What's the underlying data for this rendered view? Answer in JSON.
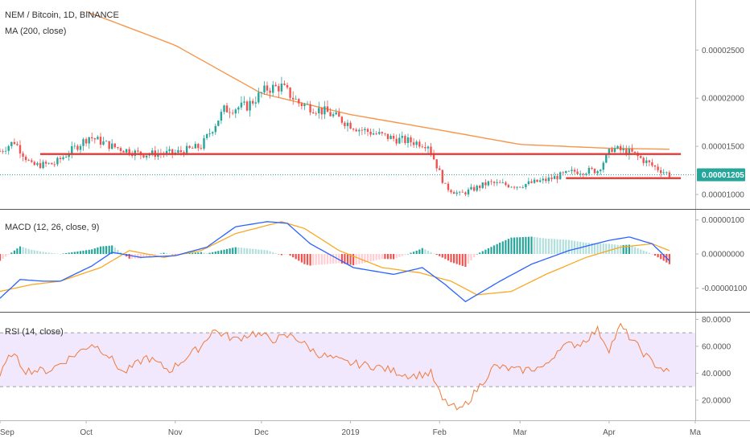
{
  "legend": {
    "symbol": "NEM / Bitcoin, 1D, BINANCE",
    "ma": "MA (200, close)",
    "macd": "MACD (12, 26, close, 9)",
    "rsi": "RSI (14, close)"
  },
  "colors": {
    "up": "#26a69a",
    "down": "#ef5350",
    "ma": "#f7954a",
    "macd": "#2962ff",
    "signal": "#f9a825",
    "hist_up": "#26a69a",
    "hist_up_light": "#b2dfdb",
    "hist_down": "#ef5350",
    "hist_down_light": "#ffcdd2",
    "rsi": "#f07a3a",
    "rsi_band": "#e9d8fd",
    "support": "#e53935",
    "last_price": "#26a69a"
  },
  "price_axis": {
    "labels": [
      "0.00002500",
      "0.00002000",
      "0.00001500",
      "0.00001000"
    ],
    "values": [
      2.5e-05,
      2e-05,
      1.5e-05,
      1e-05
    ],
    "range": [
      8.5e-06,
      3.02e-05
    ],
    "last_price_label": "0.00001205",
    "last_price": 1.205e-05
  },
  "macd_axis": {
    "labels": [
      "0.00000100",
      "0.00000000",
      "-0.00000100"
    ],
    "values": [
      1e-06,
      0,
      -1e-06
    ],
    "range": [
      -1.7e-06,
      1.3e-06
    ]
  },
  "rsi_axis": {
    "labels": [
      "80.0000",
      "60.0000",
      "40.0000",
      "20.0000"
    ],
    "values": [
      80,
      60,
      40,
      20
    ],
    "range": [
      5,
      85
    ],
    "band": [
      30,
      70
    ]
  },
  "time_axis": {
    "labels": [
      "Sep",
      "Oct",
      "Nov",
      "Dec",
      "2019",
      "Feb",
      "Mar",
      "Apr",
      "Ma"
    ],
    "dates": [
      "2018-09-01",
      "2018-10-01",
      "2018-11-01",
      "2018-12-01",
      "2019-01-01",
      "2019-02-01",
      "2019-03-01",
      "2019-04-01",
      "2019-05-01"
    ],
    "range": [
      "2018-09-01",
      "2019-05-01"
    ]
  },
  "chart_data": {
    "type": "line",
    "price_anchors": {
      "x": [
        "2018-09-01",
        "2018-09-06",
        "2018-09-12",
        "2018-09-20",
        "2018-10-02",
        "2018-10-10",
        "2018-10-20",
        "2018-11-01",
        "2018-11-10",
        "2018-11-18",
        "2018-11-26",
        "2018-12-03",
        "2018-12-08",
        "2018-12-14",
        "2018-12-24",
        "2019-01-04",
        "2019-01-16",
        "2019-01-28",
        "2019-02-03",
        "2019-02-08",
        "2019-02-18",
        "2019-02-28",
        "2019-03-10",
        "2019-03-20",
        "2019-03-28",
        "2019-04-02",
        "2019-04-09",
        "2019-04-16",
        "2019-04-22"
      ],
      "close": [
        1.45e-05,
        1.55e-05,
        1.3e-05,
        1.32e-05,
        1.6e-05,
        1.5e-05,
        1.42e-05,
        1.43e-05,
        1.5e-05,
        1.88e-05,
        1.92e-05,
        2.1e-05,
        2.12e-05,
        1.95e-05,
        1.85e-05,
        1.68e-05,
        1.58e-05,
        1.52e-05,
        1.08e-05,
        1e-05,
        1.12e-05,
        1.09e-05,
        1.15e-05,
        1.24e-05,
        1.25e-05,
        1.48e-05,
        1.43e-05,
        1.3e-05,
        1.205e-05
      ]
    },
    "ma200_anchors": {
      "x": [
        "2018-10-01",
        "2018-11-01",
        "2018-12-01",
        "2019-01-01",
        "2019-02-01",
        "2019-03-01",
        "2019-04-01",
        "2019-04-22"
      ],
      "y": [
        2.9e-05,
        2.55e-05,
        2.05e-05,
        1.83e-05,
        1.67e-05,
        1.52e-05,
        1.48e-05,
        1.47e-05
      ]
    },
    "support_lines": [
      {
        "x": [
          "2018-09-15",
          "2019-04-26"
        ],
        "y": [
          1.42e-05,
          1.42e-05
        ]
      },
      {
        "x": [
          "2019-03-17",
          "2019-04-26"
        ],
        "y": [
          1.17e-05,
          1.17e-05
        ]
      }
    ],
    "macd_anchors": {
      "x": [
        "2018-09-01",
        "2018-09-08",
        "2018-09-16",
        "2018-09-22",
        "2018-10-03",
        "2018-10-10",
        "2018-10-20",
        "2018-11-01",
        "2018-11-12",
        "2018-11-22",
        "2018-12-03",
        "2018-12-10",
        "2018-12-18",
        "2019-01-02",
        "2019-01-16",
        "2019-01-26",
        "2019-02-03",
        "2019-02-10",
        "2019-02-22",
        "2019-03-05",
        "2019-03-18",
        "2019-04-01",
        "2019-04-08",
        "2019-04-16",
        "2019-04-22"
      ],
      "y": [
        -1.3e-06,
        -7.5e-07,
        -8e-07,
        -8e-07,
        -3.5e-07,
        5e-08,
        -1e-07,
        -5e-08,
        2e-07,
        8e-07,
        9.5e-07,
        9e-07,
        3e-07,
        -4e-07,
        -6e-07,
        -4e-07,
        -9e-07,
        -1.4e-06,
        -8e-07,
        -3e-07,
        1e-07,
        4e-07,
        5e-07,
        3e-07,
        -2e-07
      ]
    },
    "signal_anchors": {
      "x": [
        "2018-09-01",
        "2018-09-12",
        "2018-09-22",
        "2018-10-06",
        "2018-10-16",
        "2018-10-28",
        "2018-11-10",
        "2018-11-22",
        "2018-12-08",
        "2018-12-16",
        "2018-12-28",
        "2019-01-12",
        "2019-01-25",
        "2019-02-05",
        "2019-02-14",
        "2019-02-26",
        "2019-03-10",
        "2019-03-24",
        "2019-04-05",
        "2019-04-16",
        "2019-04-22"
      ],
      "y": [
        -1.1e-06,
        -9e-07,
        -8e-07,
        -4e-07,
        1e-07,
        -1e-07,
        1e-07,
        6e-07,
        9.5e-07,
        7.5e-07,
        1e-07,
        -4e-07,
        -5.5e-07,
        -8e-07,
        -1.2e-06,
        -1.1e-06,
        -6e-07,
        -1e-07,
        2e-07,
        3e-07,
        1e-07
      ]
    },
    "rsi_anchors": {
      "x": [
        "2018-09-01",
        "2018-09-05",
        "2018-09-10",
        "2018-09-18",
        "2018-09-28",
        "2018-10-03",
        "2018-10-08",
        "2018-10-14",
        "2018-10-22",
        "2018-10-30",
        "2018-11-05",
        "2018-11-10",
        "2018-11-14",
        "2018-11-22",
        "2018-11-28",
        "2018-12-05",
        "2018-12-12",
        "2018-12-20",
        "2018-12-30",
        "2019-01-10",
        "2019-01-22",
        "2019-01-29",
        "2019-02-02",
        "2019-02-08",
        "2019-02-12",
        "2019-02-20",
        "2019-03-01",
        "2019-03-10",
        "2019-03-15",
        "2019-03-22",
        "2019-03-28",
        "2019-04-01",
        "2019-04-05",
        "2019-04-10",
        "2019-04-16",
        "2019-04-22"
      ],
      "y": [
        38,
        55,
        42,
        42,
        55,
        62,
        55,
        40,
        52,
        42,
        52,
        60,
        72,
        65,
        70,
        65,
        68,
        55,
        48,
        45,
        38,
        40,
        20,
        12,
        22,
        45,
        42,
        45,
        60,
        62,
        72,
        58,
        75,
        62,
        48,
        40
      ]
    }
  }
}
